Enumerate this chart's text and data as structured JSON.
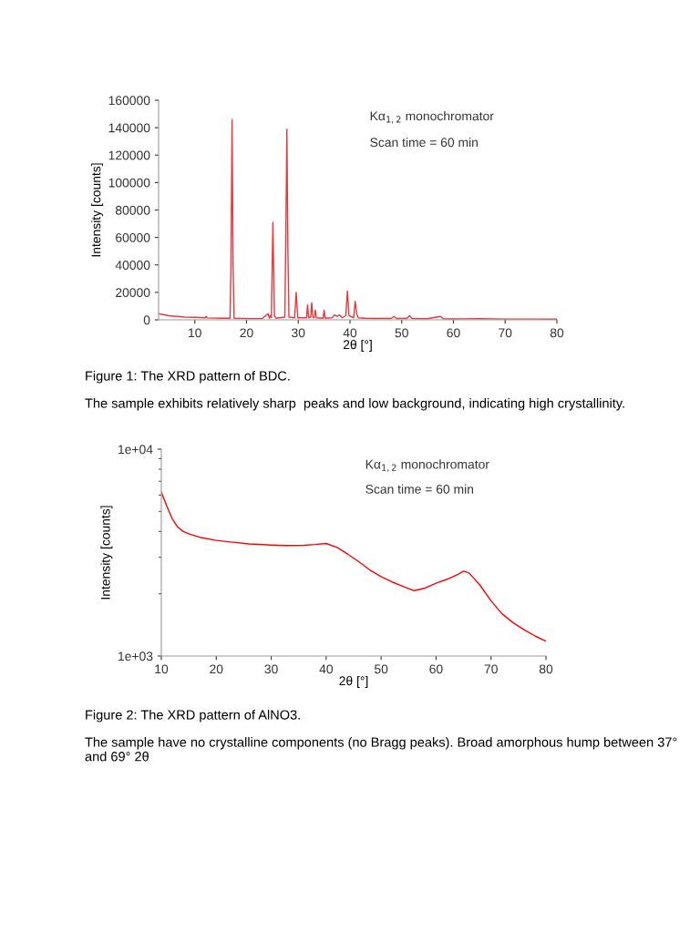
{
  "chart_data": [
    {
      "type": "line",
      "xlabel": "2θ [°]",
      "ylabel": "Intensity [counts]",
      "annotations": [
        "Kα$_{1,2}$ monochromator",
        "Scan time = 60 min",
        "Figure 1: The XRD pattern of BDC.",
        "The sample exhibits relatively sharp  peaks and low background, indicating high crystallinity."
      ],
      "xlim": [
        3,
        80
      ],
      "xticks": [
        10,
        20,
        30,
        40,
        50,
        60,
        70,
        80
      ],
      "ylim": [
        0,
        160000
      ],
      "yticks": [
        0,
        20000,
        40000,
        60000,
        80000,
        100000,
        120000,
        140000,
        160000
      ],
      "grid": false,
      "legend": false,
      "series": [
        {
          "color": "#e8383d",
          "x": [
            3,
            5,
            8,
            10,
            12,
            12.2,
            12.4,
            15,
            16.8,
            17.0,
            17.2,
            17.4,
            17.6,
            20,
            23,
            24.2,
            24.4,
            24.6,
            24.8,
            25.1,
            25.4,
            25.7,
            27.4,
            27.6,
            27.8,
            28.0,
            28.2,
            29.3,
            29.6,
            29.9,
            31.6,
            31.8,
            32.0,
            32.4,
            32.6,
            32.8,
            33.1,
            33.3,
            33.5,
            34.8,
            35.0,
            35.2,
            36.5,
            37.0,
            37.5,
            38.0,
            38.5,
            39.2,
            39.5,
            39.8,
            40.7,
            41.0,
            41.3,
            41.6,
            43,
            45,
            48,
            48.5,
            49,
            51,
            51.5,
            52,
            55,
            57.5,
            58,
            60,
            65,
            70,
            75,
            80
          ],
          "values": [
            4500,
            3000,
            2000,
            1800,
            1500,
            2500,
            1400,
            1200,
            1200,
            40000,
            146000,
            40000,
            1200,
            900,
            900,
            4500,
            1200,
            3000,
            1500,
            71000,
            3000,
            1200,
            2000,
            60000,
            139000,
            50000,
            2000,
            1500,
            20000,
            1500,
            1500,
            11000,
            1500,
            2000,
            12500,
            2000,
            1500,
            7000,
            1500,
            1200,
            7000,
            1200,
            1500,
            3500,
            2500,
            3500,
            1500,
            3000,
            21000,
            3000,
            1500,
            13500,
            4500,
            1500,
            1200,
            1000,
            1000,
            2500,
            1000,
            1000,
            3000,
            1000,
            800,
            2500,
            800,
            700,
            800,
            600,
            600,
            500
          ]
        }
      ]
    },
    {
      "type": "line",
      "xlabel": "2θ [°]",
      "ylabel": "Intensity [counts]",
      "log": true,
      "annotations": [
        "Kα$_{1,2}$ monochromator",
        "Scan time = 60 min",
        "Figure 2: The XRD pattern of AlNO3.",
        "The sample have no crystalline components (no Bragg peaks). Broad amorphous hump between 37° and 69° 2θ"
      ],
      "xlim": [
        10,
        80
      ],
      "xticks": [
        10,
        20,
        30,
        40,
        50,
        60,
        70,
        80
      ],
      "ylim": [
        1000,
        10000
      ],
      "yticks": [
        {
          "value": 1000,
          "label": "1e+03"
        },
        {
          "value": 10000,
          "label": "1e+04"
        }
      ],
      "grid": false,
      "legend": false,
      "series": [
        {
          "color": "#ff0000",
          "x": [
            10,
            11,
            12,
            13,
            14,
            15,
            17,
            20,
            23,
            26,
            30,
            33,
            36,
            38,
            40,
            42,
            44,
            46,
            48,
            50,
            52,
            54,
            56,
            58,
            60,
            62,
            64,
            65,
            66,
            68,
            70,
            72,
            74,
            76,
            78,
            80
          ],
          "values": [
            6200,
            5300,
            4600,
            4200,
            4000,
            3900,
            3750,
            3620,
            3550,
            3480,
            3440,
            3420,
            3430,
            3460,
            3500,
            3350,
            3100,
            2850,
            2600,
            2420,
            2280,
            2170,
            2070,
            2130,
            2250,
            2350,
            2480,
            2570,
            2520,
            2200,
            1850,
            1600,
            1450,
            1340,
            1250,
            1180
          ]
        }
      ]
    }
  ]
}
